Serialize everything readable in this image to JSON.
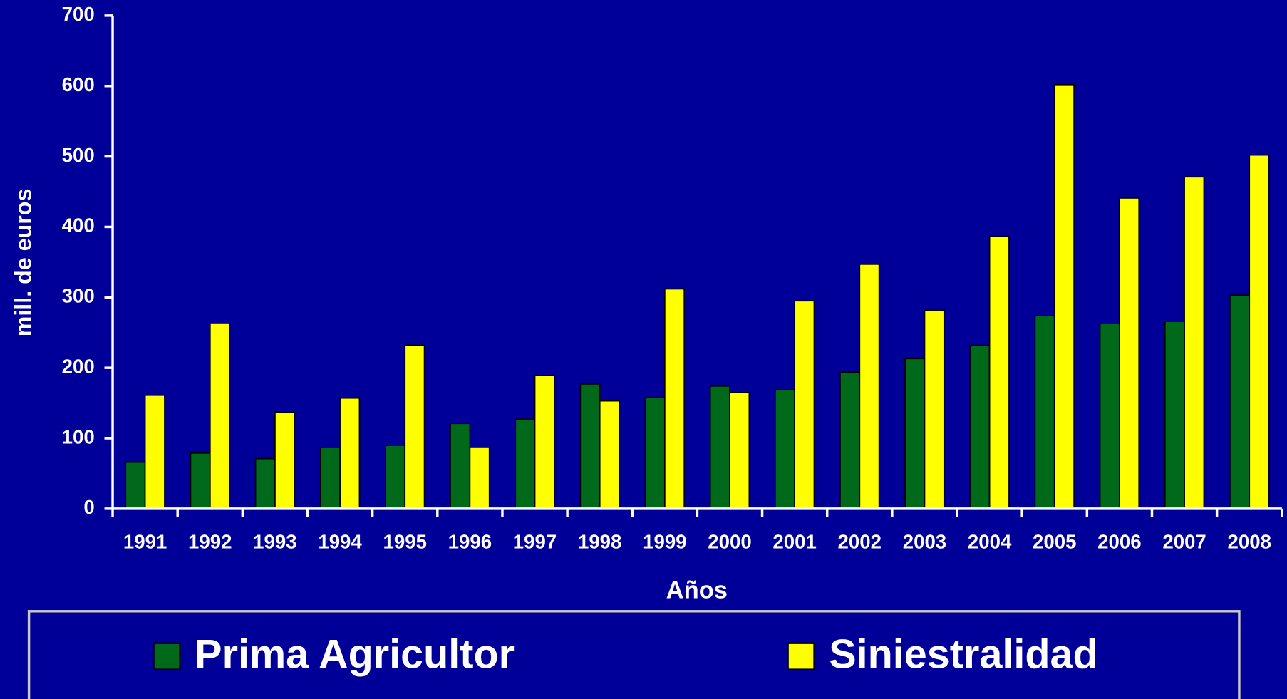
{
  "chart_data": {
    "type": "bar",
    "y_label": "mill. de euros",
    "x_label": "Años",
    "categories": [
      "1991",
      "1992",
      "1993",
      "1994",
      "1995",
      "1996",
      "1997",
      "1998",
      "1999",
      "2000",
      "2001",
      "2002",
      "2003",
      "2004",
      "2005",
      "2006",
      "2007",
      "2008"
    ],
    "series": [
      {
        "name": "Prima Agricultor",
        "color": "#006a1a",
        "values": [
          66,
          79,
          71,
          87,
          90,
          121,
          127,
          177,
          158,
          174,
          169,
          194,
          213,
          232,
          274,
          263,
          266,
          303
        ]
      },
      {
        "name": "Siniestralidad",
        "color": "#ffff00",
        "values": [
          161,
          263,
          137,
          157,
          232,
          87,
          189,
          153,
          312,
          165,
          295,
          347,
          282,
          387,
          602,
          441,
          471,
          502
        ]
      }
    ],
    "ylim": [
      0,
      700
    ],
    "yticks": [
      0,
      100,
      200,
      300,
      400,
      500,
      600,
      700
    ],
    "legend": "bottom"
  }
}
